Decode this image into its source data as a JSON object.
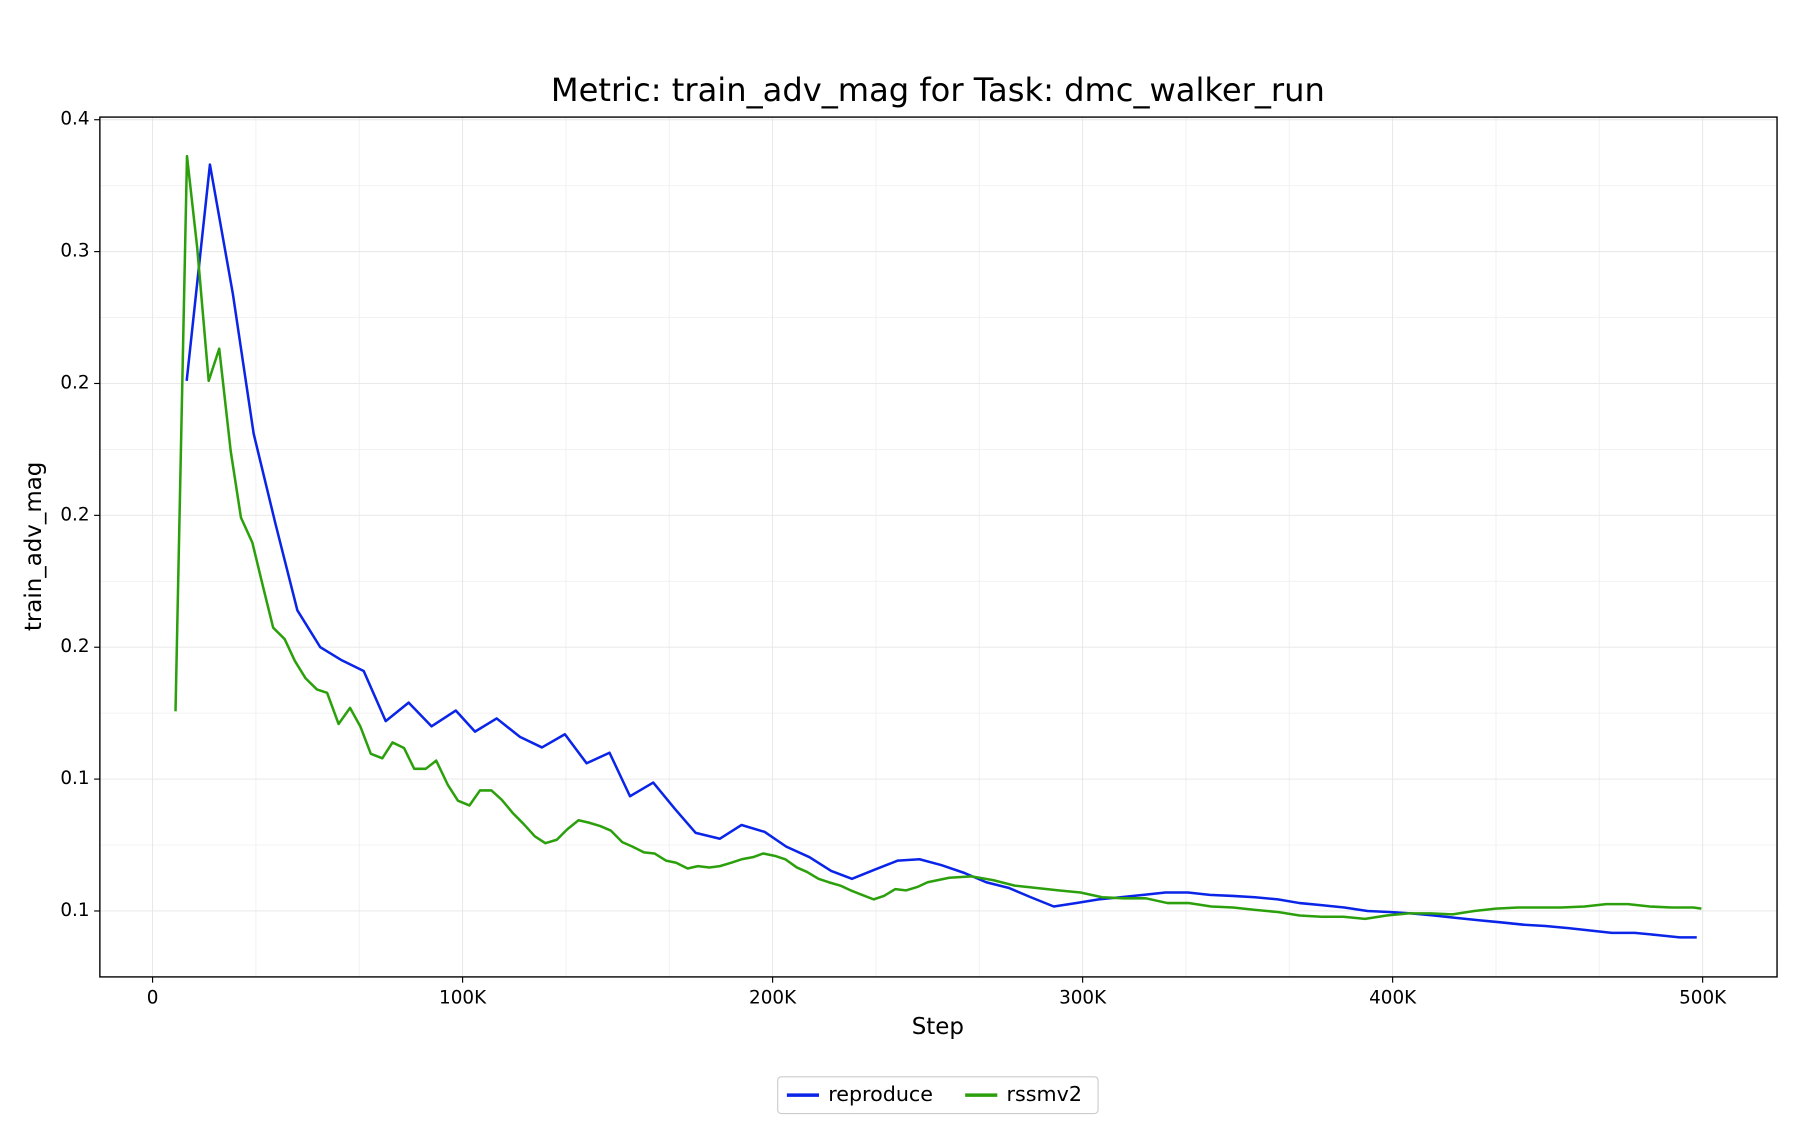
{
  "chart_data": {
    "type": "line",
    "title": "Metric: train_adv_mag for Task: dmc_walker_run",
    "x_label": "Step",
    "y_label": "train_adv_mag",
    "xlim": [
      -17000,
      524000
    ],
    "ylim": [
      0.025,
      0.351
    ],
    "xticks": [
      0,
      {
        "value": 100000,
        "label": "100K"
      },
      {
        "value": 200000,
        "label": "200K"
      },
      {
        "value": 300000,
        "label": "300K"
      },
      {
        "value": 400000,
        "label": "400K"
      },
      {
        "value": 500000,
        "label": "500K"
      }
    ],
    "yticks": [
      {
        "value": 0.05,
        "label": "0.1"
      },
      {
        "value": 0.1,
        "label": "0.1"
      },
      {
        "value": 0.15,
        "label": "0.2"
      },
      {
        "value": 0.2,
        "label": "0.2"
      },
      {
        "value": 0.25,
        "label": "0.2"
      },
      {
        "value": 0.3,
        "label": "0.3"
      },
      {
        "value": 0.35,
        "label": "0.4"
      }
    ],
    "grid": true,
    "legend": "bottom",
    "series": [
      {
        "name": "reproduce",
        "color": "#0a24e8",
        "x": [
          11000,
          18500,
          25900,
          32600,
          39600,
          46700,
          54100,
          61100,
          68100,
          75200,
          82600,
          90000,
          97800,
          104000,
          111000,
          118500,
          125600,
          133000,
          140000,
          147400,
          154000,
          161500,
          168500,
          175200,
          183000,
          190000,
          197400,
          204400,
          211900,
          218900,
          225600,
          233000,
          240400,
          247400,
          254400,
          261900,
          268900,
          276300,
          283300,
          290700,
          297800,
          305200,
          312200,
          319600,
          326700,
          334000,
          341000,
          348500,
          355600,
          363000,
          370000,
          377000,
          384400,
          391900,
          398900,
          405900,
          413300,
          420400,
          427800,
          434800,
          442200,
          449300,
          456700,
          463700,
          470700,
          478100,
          485200,
          492600,
          498100
        ],
        "values": [
          0.251,
          0.333,
          0.284,
          0.231,
          0.197,
          0.164,
          0.15,
          0.145,
          0.141,
          0.122,
          0.129,
          0.12,
          0.126,
          0.118,
          0.123,
          0.116,
          0.112,
          0.117,
          0.106,
          0.11,
          0.0935,
          0.0987,
          0.0887,
          0.0796,
          0.0774,
          0.0826,
          0.08,
          0.0744,
          0.0704,
          0.0652,
          0.0622,
          0.0657,
          0.0691,
          0.0696,
          0.0674,
          0.0644,
          0.0609,
          0.0587,
          0.0552,
          0.0517,
          0.053,
          0.0544,
          0.0552,
          0.0561,
          0.057,
          0.057,
          0.0561,
          0.0557,
          0.0552,
          0.0544,
          0.053,
          0.0522,
          0.0513,
          0.05,
          0.0496,
          0.0491,
          0.0483,
          0.0474,
          0.0465,
          0.0457,
          0.0448,
          0.0443,
          0.0435,
          0.0426,
          0.0417,
          0.0417,
          0.0409,
          0.04,
          0.04
        ]
      },
      {
        "name": "rssmv2",
        "color": "#2ca00c",
        "x": [
          7400,
          11100,
          14400,
          18100,
          21500,
          25200,
          28500,
          32200,
          35600,
          38900,
          42600,
          45900,
          49300,
          53000,
          56300,
          60000,
          63700,
          67000,
          70400,
          74100,
          77400,
          81100,
          84400,
          88100,
          91500,
          95200,
          98500,
          102200,
          105600,
          109300,
          112600,
          116300,
          119600,
          123300,
          126700,
          130400,
          133700,
          137400,
          140700,
          144400,
          147800,
          151500,
          154800,
          158500,
          161900,
          165600,
          168900,
          172600,
          175900,
          179600,
          183000,
          186700,
          190000,
          193700,
          197000,
          200700,
          204100,
          207800,
          211100,
          214800,
          218100,
          221900,
          225200,
          228900,
          232600,
          235900,
          239600,
          243000,
          246700,
          250000,
          257000,
          264100,
          271100,
          278100,
          285200,
          292200,
          299300,
          306300,
          313300,
          320400,
          327400,
          334400,
          341500,
          348500,
          355600,
          363000,
          370000,
          377000,
          384100,
          391100,
          398100,
          405200,
          412200,
          419300,
          426300,
          433300,
          440400,
          447400,
          454400,
          461900,
          468900,
          475900,
          483000,
          490000,
          497000,
          499600
        ],
        "values": [
          0.1257,
          0.3362,
          0.3014,
          0.251,
          0.2632,
          0.2244,
          0.1992,
          0.1896,
          0.1731,
          0.1574,
          0.1531,
          0.1448,
          0.1383,
          0.134,
          0.1327,
          0.1209,
          0.127,
          0.12,
          0.1096,
          0.1079,
          0.1139,
          0.1118,
          0.1039,
          0.1039,
          0.107,
          0.0979,
          0.0918,
          0.09,
          0.0957,
          0.0957,
          0.0922,
          0.087,
          0.0831,
          0.0783,
          0.0757,
          0.077,
          0.0809,
          0.0844,
          0.0835,
          0.0822,
          0.0805,
          0.0761,
          0.0744,
          0.0722,
          0.0718,
          0.0691,
          0.0683,
          0.0661,
          0.067,
          0.0665,
          0.067,
          0.0683,
          0.0696,
          0.0704,
          0.0718,
          0.0709,
          0.0696,
          0.0665,
          0.0648,
          0.0622,
          0.0609,
          0.0596,
          0.0578,
          0.0561,
          0.0544,
          0.0557,
          0.0583,
          0.0578,
          0.0591,
          0.0609,
          0.0626,
          0.0631,
          0.0617,
          0.0596,
          0.0587,
          0.0578,
          0.057,
          0.0552,
          0.0548,
          0.0548,
          0.053,
          0.053,
          0.0517,
          0.0513,
          0.0504,
          0.0496,
          0.0483,
          0.0478,
          0.0478,
          0.047,
          0.0483,
          0.0491,
          0.0491,
          0.0487,
          0.05,
          0.0509,
          0.0513,
          0.0513,
          0.0513,
          0.0517,
          0.0526,
          0.0526,
          0.0517,
          0.0513,
          0.0513,
          0.0509
        ]
      }
    ]
  }
}
